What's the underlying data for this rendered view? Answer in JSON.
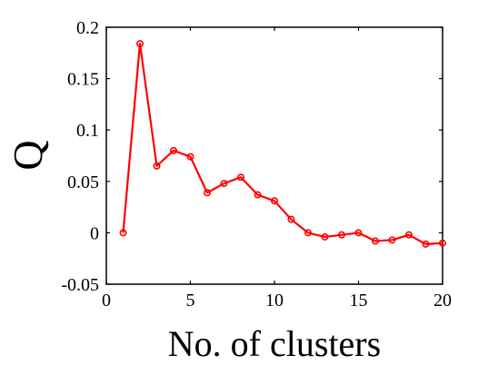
{
  "chart_data": {
    "type": "line",
    "title": "",
    "xlabel": "No. of clusters",
    "ylabel": "Q",
    "xlim": [
      0,
      20
    ],
    "ylim": [
      -0.05,
      0.2
    ],
    "xticks": [
      0,
      5,
      10,
      15,
      20
    ],
    "xtick_labels": [
      "0",
      "5",
      "10",
      "15",
      "20"
    ],
    "yticks": [
      -0.05,
      0,
      0.05,
      0.1,
      0.15,
      0.2
    ],
    "ytick_labels": [
      "-0.05",
      "0",
      "0.05",
      "0.1",
      "0.15",
      "0.2"
    ],
    "grid": false,
    "series": [
      {
        "color": "#ff0000",
        "marker": "circle",
        "x": [
          1,
          2,
          3,
          4,
          5,
          6,
          7,
          8,
          9,
          10,
          11,
          12,
          13,
          14,
          15,
          16,
          17,
          18,
          19,
          20
        ],
        "y": [
          0,
          0.184,
          0.065,
          0.08,
          0.074,
          0.039,
          0.048,
          0.054,
          0.037,
          0.031,
          0.013,
          0.0,
          -0.004,
          -0.002,
          0.0,
          -0.008,
          -0.007,
          -0.002,
          -0.011,
          -0.01
        ]
      }
    ]
  }
}
